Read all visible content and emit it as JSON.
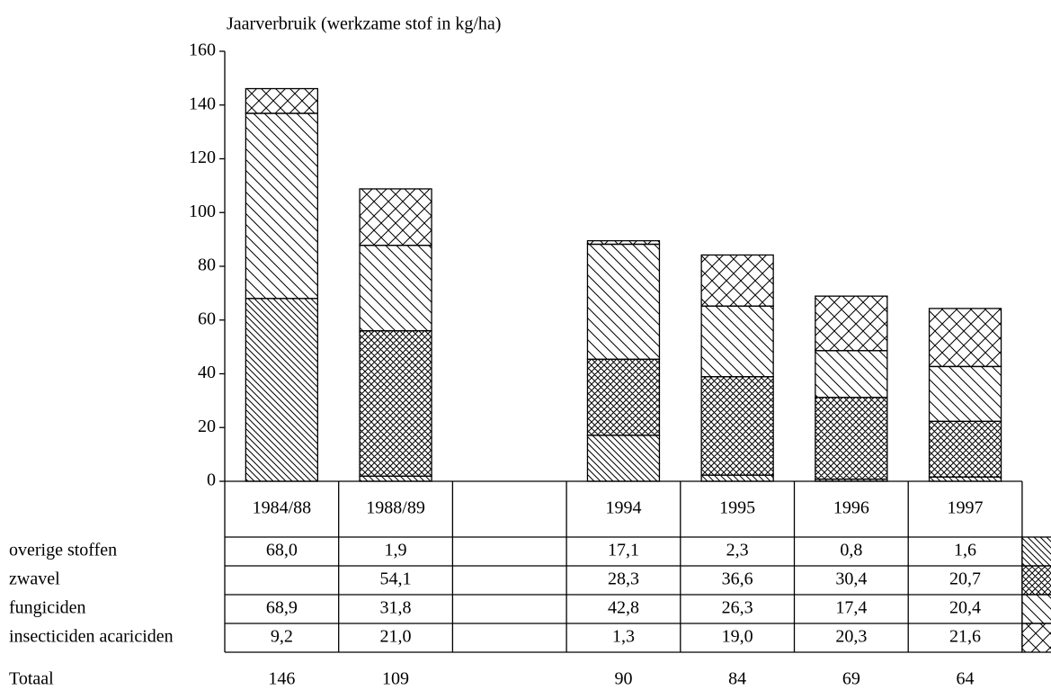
{
  "chart_data": {
    "type": "bar",
    "stacked": true,
    "y_label": "Jaarverbruik (werkzame stof in kg/ha)",
    "categories": [
      "1984/88",
      "1988/89",
      null,
      "1994",
      "1995",
      "1996",
      "1997"
    ],
    "ylim": [
      0,
      160
    ],
    "yticks": [
      0,
      20,
      40,
      60,
      80,
      100,
      120,
      140,
      160
    ],
    "series": [
      {
        "name": "overige stoffen",
        "color": "#000000",
        "pattern": "diag-dense",
        "values": [
          68.0,
          1.9,
          null,
          17.1,
          2.3,
          0.8,
          1.6
        ],
        "value_labels": [
          "68,0",
          "1,9",
          null,
          "17,1",
          "2,3",
          "0,8",
          "1,6"
        ]
      },
      {
        "name": "zwavel",
        "color": "#000000",
        "pattern": "cross-dense",
        "values": [
          null,
          54.1,
          null,
          28.3,
          36.6,
          30.4,
          20.7
        ],
        "value_labels": [
          null,
          "54,1",
          null,
          "28,3",
          "36,6",
          "30,4",
          "20,7"
        ]
      },
      {
        "name": "fungiciden",
        "color": "#000000",
        "pattern": "diag-wide",
        "values": [
          68.9,
          31.8,
          null,
          42.8,
          26.3,
          17.4,
          20.4
        ],
        "value_labels": [
          "68,9",
          "31,8",
          null,
          "42,8",
          "26,3",
          "17,4",
          "20,4"
        ]
      },
      {
        "name": "insecticiden acariciden",
        "color": "#000000",
        "pattern": "cross-wide",
        "values": [
          9.2,
          21.0,
          null,
          1.3,
          19.0,
          20.3,
          21.6
        ],
        "value_labels": [
          "9,2",
          "21,0",
          null,
          "1,3",
          "19,0",
          "20,3",
          "21,6"
        ]
      }
    ],
    "totals_label": "Totaal",
    "totals": [
      146,
      109,
      null,
      90,
      84,
      69,
      64
    ]
  }
}
